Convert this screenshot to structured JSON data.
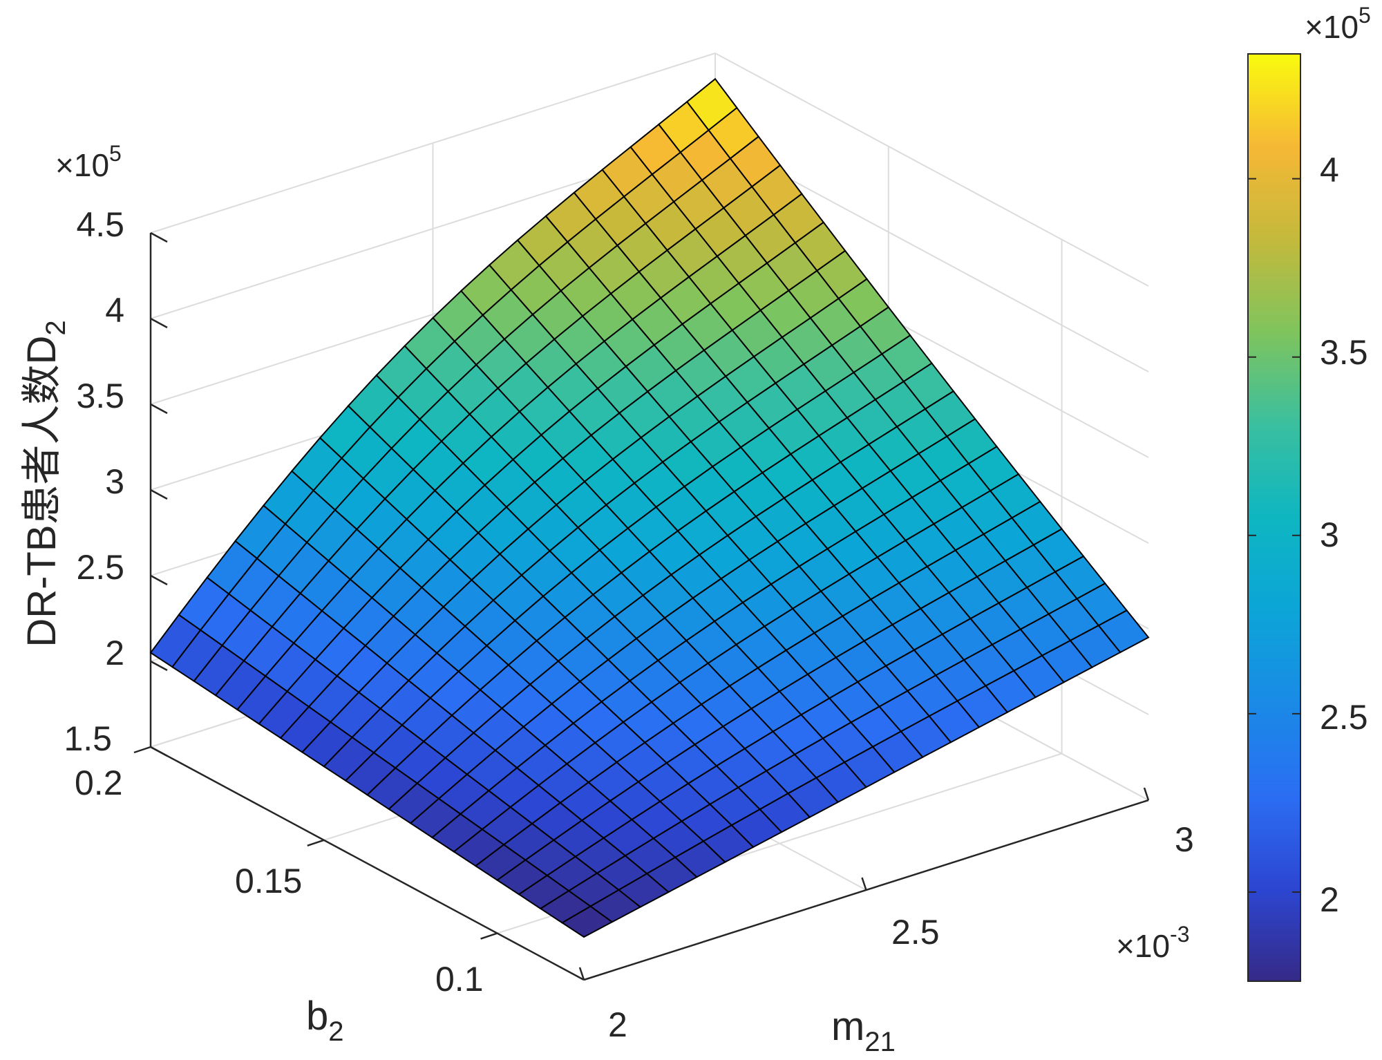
{
  "chart_data": {
    "type": "surface",
    "x_axis": {
      "label": "m",
      "label_sub": "21",
      "ticks": [
        "2",
        "2.5",
        "3"
      ],
      "tick_values": [
        2.0,
        2.5,
        3.0
      ],
      "range": [
        2.0,
        3.0
      ],
      "exponent_base": "×10",
      "exponent": "-3"
    },
    "y_axis": {
      "label": "b",
      "label_sub": "2",
      "ticks": [
        "0.1",
        "0.15",
        "0.2"
      ],
      "tick_values": [
        0.1,
        0.15,
        0.2
      ],
      "range": [
        0.075,
        0.2
      ]
    },
    "z_axis": {
      "label": "DR-TB患者人数D",
      "label_sub": "2",
      "ticks": [
        "1.5",
        "2",
        "2.5",
        "3",
        "3.5",
        "4",
        "4.5"
      ],
      "tick_values": [
        1.5,
        2,
        2.5,
        3,
        3.5,
        4,
        4.5
      ],
      "range": [
        1.5,
        4.5
      ],
      "exponent_base": "×10",
      "exponent": "5"
    },
    "surface": {
      "grid_size": [
        21,
        21
      ],
      "corner_values_x1e5": {
        "m_2.0_b_0.075": 1.75,
        "m_3.0_b_0.075": 2.45,
        "m_2.0_b_0.2": 2.05,
        "m_3.0_b_0.2": 4.35
      },
      "grid": true,
      "edge_color": "#000000"
    },
    "colorbar": {
      "colormap": "parula",
      "range": [
        1.75,
        4.35
      ],
      "ticks": [
        "2",
        "2.5",
        "3",
        "3.5",
        "4"
      ],
      "tick_values": [
        2,
        2.5,
        3,
        3.5,
        4
      ],
      "exponent_base": "×10",
      "exponent": "5"
    },
    "grid": true
  }
}
